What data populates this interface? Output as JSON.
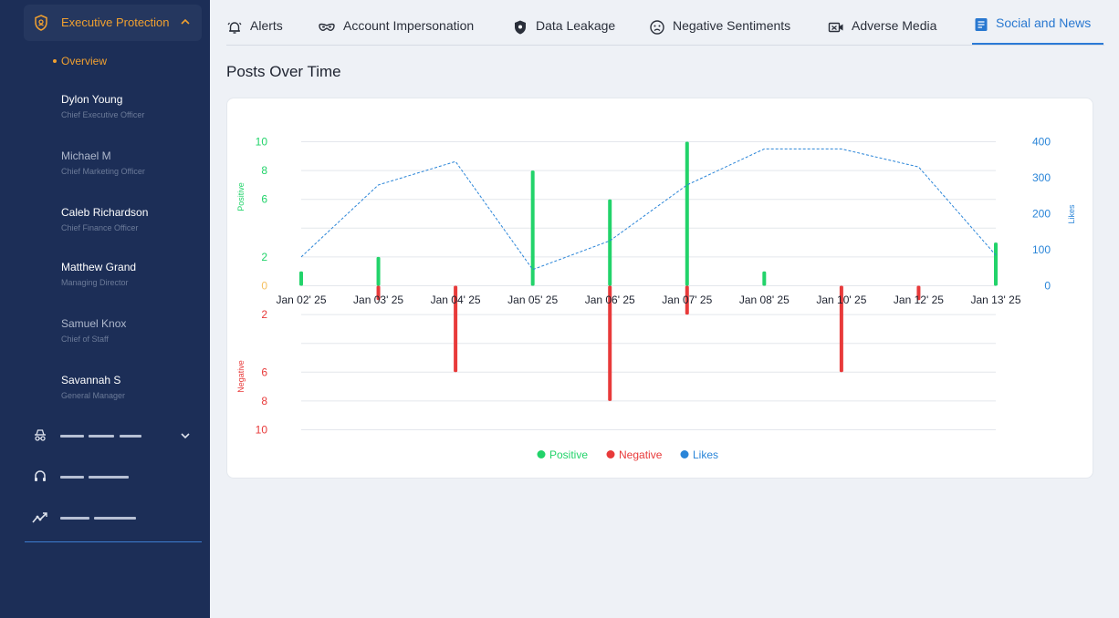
{
  "sidebar": {
    "section_title": "Executive Protection",
    "overview_label": "Overview",
    "people": [
      {
        "name": "Dylon Young",
        "role": "Chief Executive Officer"
      },
      {
        "name": "Michael M",
        "role": "Chief Marketing Officer"
      },
      {
        "name": "Caleb Richardson",
        "role": "Chief Finance Officer"
      },
      {
        "name": "Matthew Grand",
        "role": "Managing Director"
      },
      {
        "name": "Samuel Knox",
        "role": "Chief of Staff"
      },
      {
        "name": "Savannah S",
        "role": "General Manager"
      }
    ],
    "icons": [
      "shield-icon",
      "chevron-up-icon",
      "spy-icon",
      "chevron-down-icon",
      "headset-icon",
      "trend-icon"
    ]
  },
  "tabs": [
    {
      "label": "Alerts",
      "icon": "bell-icon"
    },
    {
      "label": "Account Impersonation",
      "icon": "mask-icon"
    },
    {
      "label": "Data Leakage",
      "icon": "shield-icon"
    },
    {
      "label": "Negative Sentiments",
      "icon": "sad-face-icon"
    },
    {
      "label": "Adverse Media",
      "icon": "video-icon"
    },
    {
      "label": "Social and News",
      "icon": "document-icon",
      "active": true
    }
  ],
  "page": {
    "section_title": "Posts Over Time"
  },
  "colors": {
    "positive": "#22d36a",
    "negative": "#e83a3a",
    "likes": "#2a85d8",
    "accent": "#f0a030",
    "sidebar": "#1c2e57"
  },
  "chart_data": {
    "type": "bar",
    "categories": [
      "Jan 02' 25",
      "Jan 03' 25",
      "Jan 04' 25",
      "Jan 05' 25",
      "Jan 06' 25",
      "Jan 07' 25",
      "Jan 08' 25",
      "Jan 10' 25",
      "Jan 12' 25",
      "Jan 13' 25"
    ],
    "series": [
      {
        "name": "Positive",
        "values": [
          1,
          2,
          0,
          8,
          6,
          10,
          1,
          0,
          0,
          3
        ]
      },
      {
        "name": "Negative",
        "values": [
          0,
          1,
          6,
          0,
          8,
          2,
          0,
          6,
          1,
          0
        ]
      },
      {
        "name": "Likes",
        "type": "line",
        "style": "dashed",
        "values": [
          80,
          280,
          345,
          45,
          125,
          280,
          380,
          380,
          330,
          85
        ]
      }
    ],
    "y_left_top": {
      "label": "Positive",
      "ticks": [
        "0",
        "2",
        "6",
        "8",
        "10"
      ],
      "range": [
        0,
        10
      ]
    },
    "y_left_bottom": {
      "label": "Negative",
      "ticks": [
        "2",
        "6",
        "8",
        "10"
      ],
      "range": [
        0,
        10
      ]
    },
    "y_right": {
      "label": "Likes",
      "ticks": [
        "0",
        "100",
        "200",
        "300",
        "400"
      ],
      "range": [
        0,
        400
      ]
    },
    "legend": {
      "position": "bottom",
      "items": [
        "Positive",
        "Negative",
        "Likes"
      ]
    },
    "grid": true
  }
}
